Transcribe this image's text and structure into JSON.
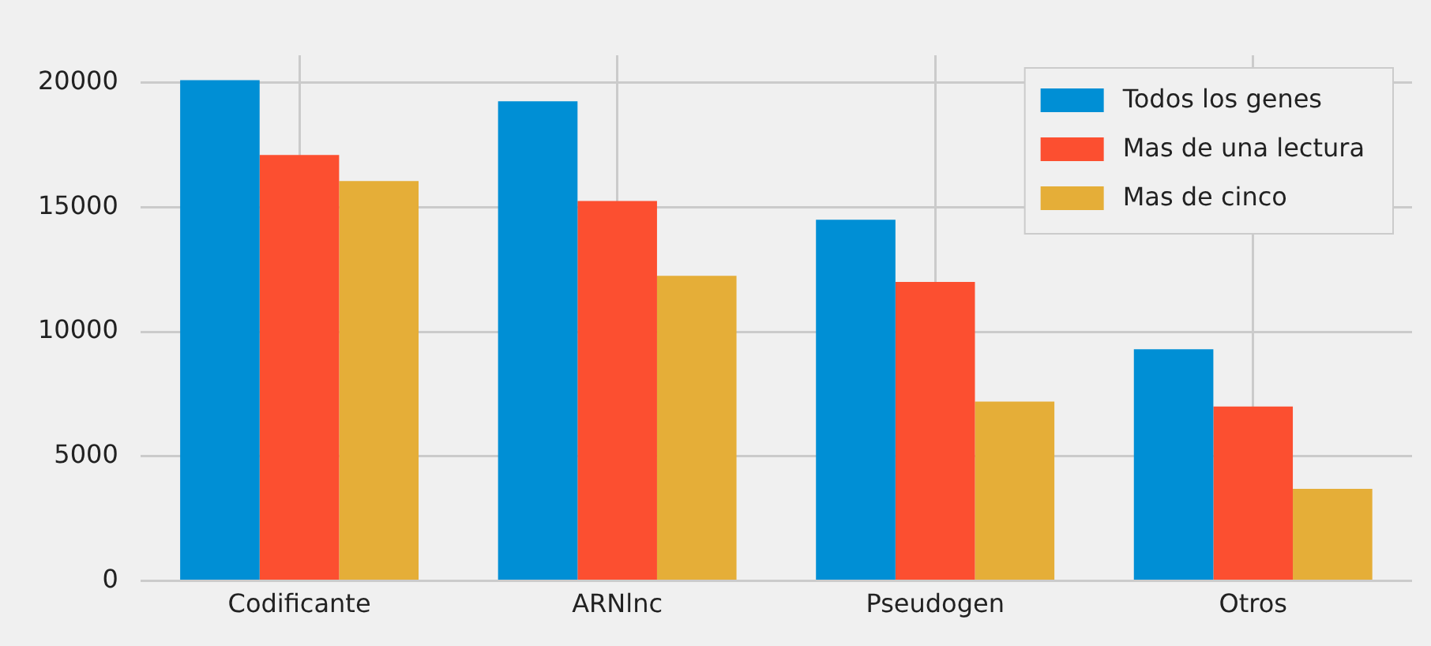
{
  "chart_data": {
    "type": "bar",
    "categories": [
      "Codificante",
      "ARNlnc",
      "Pseudogen",
      "Otros"
    ],
    "series": [
      {
        "name": "Todos los genes",
        "color": "#008fd5",
        "values": [
          20100,
          19250,
          14500,
          9300
        ]
      },
      {
        "name": "Mas de una lectura",
        "color": "#fc4f30",
        "values": [
          17100,
          15250,
          12000,
          7000
        ]
      },
      {
        "name": "Mas de cinco",
        "color": "#e5ae38",
        "values": [
          16050,
          12250,
          7200,
          3700
        ]
      }
    ],
    "ylim": [
      0,
      21100
    ],
    "yticks": [
      0,
      5000,
      10000,
      15000,
      20000
    ],
    "grid": true,
    "legend": "top right"
  }
}
